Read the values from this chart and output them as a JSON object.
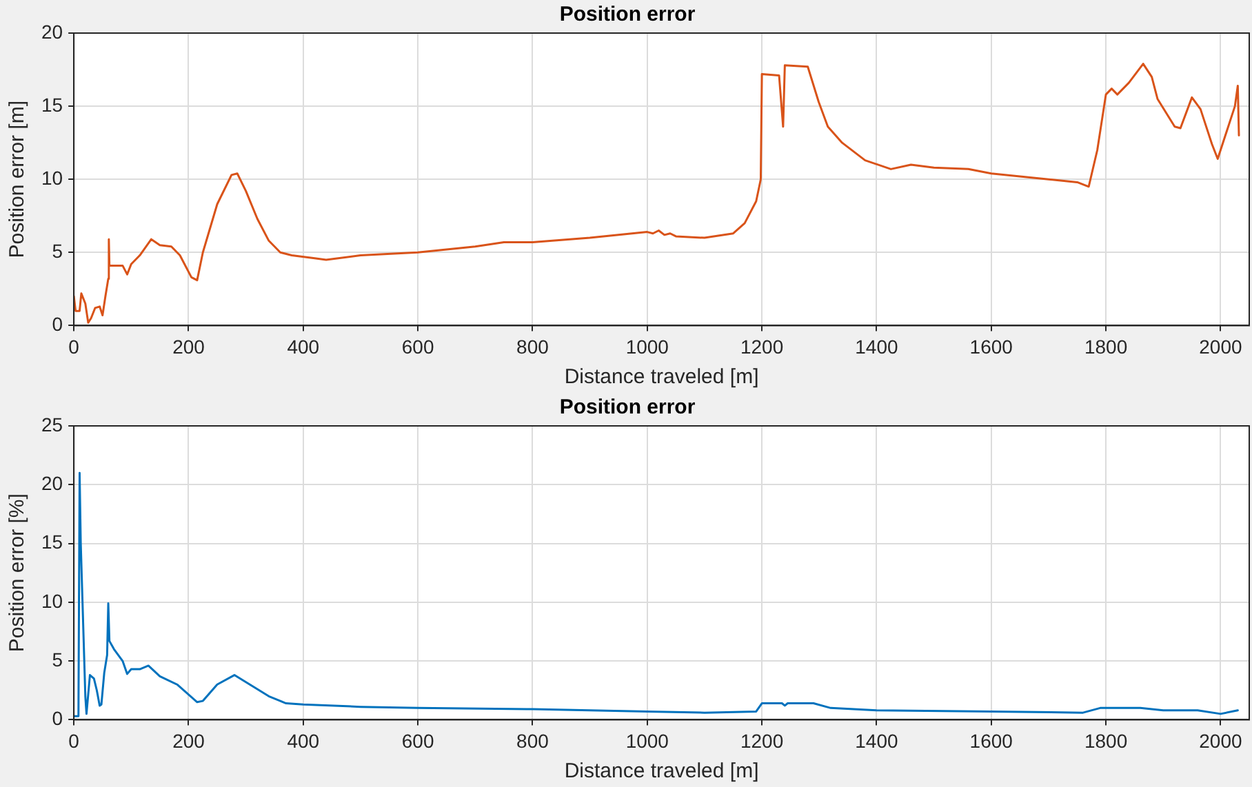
{
  "chart_data": [
    {
      "type": "line",
      "title": "Position error",
      "xlabel": "Distance traveled [m]",
      "ylabel": "Position error [m]",
      "xlim": [
        0,
        2050
      ],
      "xticks": [
        0,
        200,
        400,
        600,
        800,
        1000,
        1200,
        1400,
        1600,
        1800,
        2000
      ],
      "ylim": [
        0,
        20
      ],
      "yticks": [
        0,
        5,
        10,
        15,
        20
      ],
      "grid": true,
      "legend": false,
      "marker": "none",
      "line_style": "solid",
      "series": [
        {
          "color": "#d95319",
          "x": [
            0,
            3,
            10,
            13,
            20,
            25,
            30,
            37,
            45,
            50,
            55,
            60,
            61,
            62,
            85,
            93,
            100,
            115,
            135,
            150,
            170,
            185,
            205,
            215,
            225,
            250,
            275,
            285,
            300,
            320,
            340,
            360,
            380,
            420,
            440,
            500,
            600,
            700,
            750,
            800,
            900,
            1000,
            1010,
            1020,
            1030,
            1040,
            1050,
            1100,
            1150,
            1170,
            1190,
            1198,
            1200,
            1230,
            1237,
            1240,
            1280,
            1299,
            1315,
            1340,
            1380,
            1425,
            1460,
            1500,
            1560,
            1600,
            1650,
            1700,
            1750,
            1770,
            1785,
            1800,
            1810,
            1820,
            1840,
            1865,
            1880,
            1890,
            1920,
            1930,
            1950,
            1965,
            1985,
            1995,
            2025,
            2030,
            2032
          ],
          "values": [
            2,
            1,
            1,
            2.2,
            1.5,
            0.2,
            0.5,
            1.2,
            1.3,
            0.7,
            2,
            3.2,
            5.9,
            4.1,
            4.1,
            3.5,
            4.2,
            4.8,
            5.9,
            5.5,
            5.4,
            4.8,
            3.3,
            3.1,
            5,
            8.3,
            10.3,
            10.4,
            9.2,
            7.3,
            5.8,
            5,
            4.8,
            4.6,
            4.5,
            4.8,
            5,
            5.4,
            5.7,
            5.7,
            6,
            6.4,
            6.3,
            6.5,
            6.2,
            6.3,
            6.1,
            6,
            6.3,
            7,
            8.5,
            10,
            17.2,
            17.1,
            13.6,
            17.8,
            17.7,
            15.3,
            13.6,
            12.5,
            11.3,
            10.7,
            11,
            10.8,
            10.7,
            10.4,
            10.2,
            10,
            9.8,
            9.5,
            12,
            15.8,
            16.2,
            15.8,
            16.6,
            17.9,
            17,
            15.5,
            13.6,
            13.5,
            15.6,
            14.8,
            12.4,
            11.4,
            15,
            16.4,
            13
          ]
        }
      ]
    },
    {
      "type": "line",
      "title": "Position error",
      "xlabel": "Distance traveled [m]",
      "ylabel": "Position error [%]",
      "xlim": [
        0,
        2050
      ],
      "xticks": [
        0,
        200,
        400,
        600,
        800,
        1000,
        1200,
        1400,
        1600,
        1800,
        2000
      ],
      "ylim": [
        0,
        25
      ],
      "yticks": [
        0,
        5,
        10,
        15,
        20,
        25
      ],
      "grid": true,
      "legend": false,
      "marker": "none",
      "line_style": "solid",
      "series": [
        {
          "color": "#0072bd",
          "x": [
            0,
            8,
            10,
            12,
            20,
            22,
            28,
            35,
            40,
            45,
            48,
            53,
            58,
            60,
            62,
            70,
            85,
            93,
            100,
            115,
            130,
            150,
            180,
            215,
            225,
            250,
            280,
            300,
            340,
            370,
            400,
            500,
            600,
            800,
            1000,
            1100,
            1190,
            1200,
            1235,
            1240,
            1245,
            1290,
            1320,
            1400,
            1600,
            1760,
            1790,
            1860,
            1900,
            1960,
            2000,
            2030
          ],
          "values": [
            0.3,
            0.3,
            21,
            15,
            2,
            0.5,
            3.8,
            3.5,
            2.5,
            1.2,
            1.3,
            4,
            5.5,
            9.9,
            6.7,
            6,
            5,
            3.9,
            4.3,
            4.3,
            4.6,
            3.7,
            3,
            1.5,
            1.6,
            3,
            3.8,
            3.2,
            2,
            1.4,
            1.3,
            1.1,
            1,
            0.9,
            0.7,
            0.6,
            0.7,
            1.4,
            1.4,
            1.2,
            1.4,
            1.4,
            1,
            0.8,
            0.7,
            0.6,
            1,
            1,
            0.8,
            0.8,
            0.5,
            0.8
          ]
        }
      ]
    }
  ]
}
